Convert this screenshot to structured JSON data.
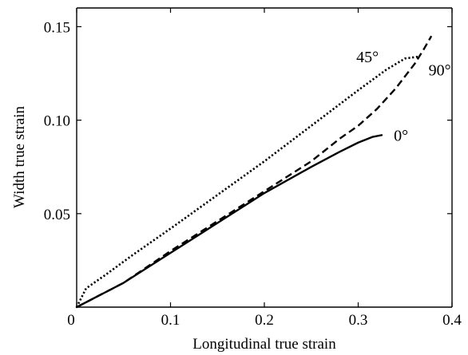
{
  "chart_data": {
    "type": "line",
    "title": "",
    "xlabel": "Longitudinal true strain",
    "ylabel": "Width true strain",
    "xlim": [
      0,
      0.4
    ],
    "ylim": [
      0,
      0.16
    ],
    "xticks": [
      {
        "value": 0,
        "label": "0"
      },
      {
        "value": 0.1,
        "label": "0.1"
      },
      {
        "value": 0.2,
        "label": "0.2"
      },
      {
        "value": 0.3,
        "label": "0.3"
      },
      {
        "value": 0.4,
        "label": "0.4"
      }
    ],
    "yticks": [
      {
        "value": 0.05,
        "label": "0.05"
      },
      {
        "value": 0.1,
        "label": "0.10"
      },
      {
        "value": 0.15,
        "label": "0.15"
      }
    ],
    "grid": false,
    "legend": "none",
    "series": [
      {
        "name": "45°",
        "dash": "dotted",
        "x": [
          0,
          0.01,
          0.03,
          0.06,
          0.1,
          0.15,
          0.2,
          0.25,
          0.3,
          0.33,
          0.35,
          0.365
        ],
        "y": [
          0,
          0.01,
          0.017,
          0.028,
          0.042,
          0.06,
          0.078,
          0.097,
          0.116,
          0.127,
          0.133,
          0.134
        ]
      },
      {
        "name": "90°",
        "dash": "dashed",
        "x": [
          0,
          0.05,
          0.1,
          0.15,
          0.2,
          0.25,
          0.28,
          0.3,
          0.32,
          0.34,
          0.36,
          0.37,
          0.378
        ],
        "y": [
          0,
          0.013,
          0.03,
          0.046,
          0.062,
          0.078,
          0.09,
          0.097,
          0.106,
          0.117,
          0.13,
          0.138,
          0.145
        ]
      },
      {
        "name": "0°",
        "dash": "solid",
        "x": [
          0,
          0.05,
          0.1,
          0.15,
          0.2,
          0.25,
          0.28,
          0.3,
          0.315,
          0.325
        ],
        "y": [
          0,
          0.013,
          0.029,
          0.045,
          0.061,
          0.075,
          0.083,
          0.088,
          0.091,
          0.092
        ]
      }
    ],
    "series_labels": [
      {
        "text": "45°",
        "x": 0.298,
        "y": 0.131
      },
      {
        "text": "90°",
        "x": 0.375,
        "y": 0.124
      },
      {
        "text": "0°",
        "x": 0.338,
        "y": 0.089
      }
    ]
  }
}
